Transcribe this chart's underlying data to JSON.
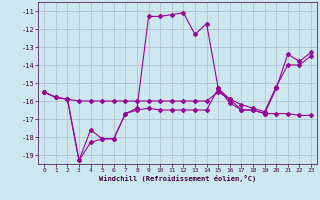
{
  "xlabel": "Windchill (Refroidissement éolien,°C)",
  "bg_color": "#cce8ee",
  "grid_color": "#aabbcc",
  "line_color": "#990099",
  "ylim": [
    -19.5,
    -10.5
  ],
  "xlim": [
    -0.5,
    23.5
  ],
  "yticks": [
    -19,
    -18,
    -17,
    -16,
    -15,
    -14,
    -13,
    -12,
    -11
  ],
  "xticks": [
    0,
    1,
    2,
    3,
    4,
    5,
    6,
    7,
    8,
    9,
    10,
    11,
    12,
    13,
    14,
    15,
    16,
    17,
    18,
    19,
    20,
    21,
    22,
    23
  ],
  "series1_x": [
    0,
    1,
    2,
    3,
    4,
    5,
    6,
    7,
    8,
    9,
    10,
    11,
    12,
    13,
    14,
    15,
    16,
    17,
    18,
    19,
    20,
    21,
    22,
    23
  ],
  "series1_y": [
    -15.5,
    -15.8,
    -15.9,
    -19.3,
    -17.6,
    -18.1,
    -18.1,
    -16.7,
    -16.4,
    -11.3,
    -11.3,
    -11.2,
    -11.1,
    -12.3,
    -11.7,
    -15.3,
    -15.9,
    -16.5,
    -16.5,
    -16.7,
    -15.3,
    -13.4,
    -13.8,
    -13.3
  ],
  "series2_x": [
    0,
    1,
    2,
    3,
    4,
    5,
    6,
    7,
    8,
    9,
    10,
    11,
    12,
    13,
    14,
    15,
    16,
    17,
    18,
    19,
    20,
    21,
    22,
    23
  ],
  "series2_y": [
    -15.5,
    -15.8,
    -15.9,
    -16.0,
    -16.0,
    -16.0,
    -16.0,
    -16.0,
    -16.0,
    -16.0,
    -16.0,
    -16.0,
    -16.0,
    -16.0,
    -16.0,
    -15.5,
    -15.9,
    -16.2,
    -16.4,
    -16.6,
    -15.2,
    -14.0,
    -14.0,
    -13.5
  ],
  "series3_x": [
    0,
    1,
    2,
    3,
    4,
    5,
    6,
    7,
    8,
    9,
    10,
    11,
    12,
    13,
    14,
    15,
    16,
    17,
    18,
    19,
    20,
    21,
    22,
    23
  ],
  "series3_y": [
    -15.5,
    -15.8,
    -15.9,
    -19.3,
    -18.3,
    -18.1,
    -18.1,
    -16.7,
    -16.5,
    -16.4,
    -16.5,
    -16.5,
    -16.5,
    -16.5,
    -16.5,
    -15.3,
    -16.1,
    -16.5,
    -16.5,
    -16.7,
    -16.7,
    -16.7,
    -16.8,
    -16.8
  ]
}
